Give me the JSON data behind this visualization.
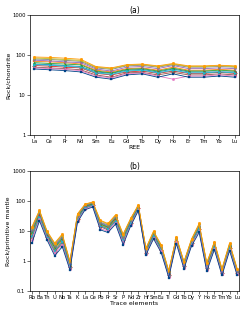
{
  "ree_elements": [
    "La",
    "Ce",
    "Pr",
    "Nd",
    "Sm",
    "Eu",
    "Gd",
    "Tb",
    "Dy",
    "Ho",
    "Er",
    "Tm",
    "Yb",
    "Lu"
  ],
  "trace_elements": [
    "Rb",
    "Ba",
    "Th",
    "U",
    "Nb",
    "Ta",
    "K",
    "La",
    "Ce",
    "Pb",
    "Pr",
    "Sr",
    "P",
    "Nd",
    "Zr",
    "Hf",
    "Sm",
    "Eu",
    "Ti",
    "Gd",
    "Tb",
    "Dy",
    "Y",
    "Ho",
    "Er",
    "Tm",
    "Yb",
    "Lu"
  ],
  "title_a": "(a)",
  "title_b": "(b)",
  "ylabel_a": "Rock/chondrite",
  "ylabel_b": "Rock/primitive mantle",
  "xlabel_a": "REE",
  "xlabel_b": "Trace elements",
  "colors": [
    "#1f77b4",
    "#ff7f0e",
    "#2ca02c",
    "#d62728",
    "#9467bd",
    "#8c564b",
    "#17becf",
    "#7f7f7f",
    "#bcbd22",
    "#e377c2",
    "#ff9900",
    "#004488"
  ],
  "ree_data": [
    [
      60,
      58,
      55,
      52,
      38,
      35,
      42,
      44,
      38,
      45,
      38,
      38,
      38,
      38
    ],
    [
      70,
      68,
      65,
      60,
      42,
      38,
      46,
      48,
      42,
      50,
      42,
      42,
      44,
      42
    ],
    [
      65,
      62,
      60,
      57,
      40,
      36,
      44,
      46,
      40,
      47,
      40,
      40,
      42,
      40
    ],
    [
      55,
      53,
      50,
      48,
      35,
      32,
      38,
      40,
      35,
      40,
      35,
      35,
      37,
      35
    ],
    [
      75,
      72,
      68,
      65,
      45,
      40,
      50,
      52,
      46,
      55,
      46,
      46,
      48,
      46
    ],
    [
      50,
      48,
      46,
      43,
      32,
      28,
      36,
      37,
      32,
      37,
      32,
      32,
      34,
      32
    ],
    [
      58,
      56,
      53,
      50,
      36,
      33,
      40,
      42,
      36,
      42,
      36,
      36,
      38,
      36
    ],
    [
      80,
      78,
      74,
      70,
      48,
      44,
      54,
      56,
      50,
      58,
      50,
      50,
      52,
      50
    ],
    [
      85,
      82,
      78,
      74,
      50,
      46,
      56,
      58,
      52,
      60,
      52,
      52,
      54,
      52
    ],
    [
      48,
      46,
      44,
      41,
      30,
      27,
      34,
      36,
      30,
      25,
      30,
      30,
      32,
      30
    ],
    [
      90,
      88,
      84,
      79,
      52,
      48,
      58,
      60,
      54,
      62,
      54,
      54,
      56,
      54
    ],
    [
      45,
      43,
      41,
      38,
      28,
      25,
      32,
      34,
      28,
      34,
      28,
      28,
      30,
      28
    ]
  ],
  "trace_data": [
    [
      10,
      40,
      8,
      3,
      6,
      0.8,
      30,
      65,
      80,
      18,
      14,
      28,
      6,
      22,
      60,
      2.2,
      8,
      3.5,
      10,
      5.5,
      0.8,
      4.5,
      14,
      0.7,
      3.5,
      0.45,
      3.2,
      0.45
    ],
    [
      8,
      35,
      7,
      2.5,
      5,
      0.7,
      28,
      70,
      85,
      16,
      13,
      25,
      5.5,
      20,
      65,
      2.0,
      7.5,
      3.2,
      9,
      5.0,
      0.75,
      4.2,
      13,
      0.65,
      3.2,
      0.42,
      3.0,
      0.42
    ],
    [
      9,
      38,
      7.5,
      2.8,
      5.5,
      0.75,
      29,
      68,
      82,
      17,
      13.5,
      27,
      5.8,
      21,
      62,
      2.1,
      7.8,
      3.3,
      9.5,
      5.2,
      0.77,
      4.3,
      13.5,
      0.68,
      3.3,
      0.43,
      3.1,
      0.43
    ],
    [
      7,
      32,
      6.5,
      2.2,
      4.5,
      0.65,
      26,
      62,
      76,
      15,
      12,
      23,
      5.0,
      19,
      58,
      1.9,
      7.0,
      3.0,
      8.5,
      4.8,
      0.7,
      4.0,
      12,
      0.6,
      3.0,
      0.4,
      2.8,
      0.4
    ],
    [
      12,
      45,
      9,
      3.5,
      7,
      0.9,
      35,
      75,
      90,
      20,
      16,
      32,
      7,
      25,
      70,
      2.5,
      9,
      4.0,
      11,
      6.0,
      0.9,
      5.0,
      16,
      0.8,
      4.0,
      0.5,
      3.6,
      0.5
    ],
    [
      6,
      28,
      6,
      2.0,
      4,
      0.6,
      24,
      58,
      72,
      14,
      11,
      21,
      4.5,
      18,
      55,
      1.8,
      6.5,
      2.8,
      8,
      4.5,
      0.65,
      3.8,
      11,
      0.55,
      2.8,
      0.38,
      2.6,
      0.38
    ],
    [
      7,
      30,
      6.5,
      2.2,
      4.5,
      0.65,
      26,
      60,
      74,
      15,
      12,
      22,
      5.0,
      19,
      57,
      1.9,
      7.0,
      3.0,
      8.5,
      4.8,
      0.68,
      4.0,
      12,
      0.58,
      2.9,
      0.39,
      2.7,
      0.39
    ],
    [
      11,
      42,
      8.5,
      3.2,
      6.5,
      0.85,
      33,
      72,
      88,
      19,
      15,
      30,
      6.5,
      24,
      68,
      2.4,
      8.5,
      3.8,
      10.5,
      5.8,
      0.87,
      4.8,
      15,
      0.76,
      3.8,
      0.48,
      3.4,
      0.48
    ],
    [
      13,
      48,
      9.5,
      3.8,
      7.5,
      0.95,
      37,
      78,
      93,
      22,
      17,
      34,
      7.5,
      26,
      73,
      2.6,
      9.5,
      4.2,
      11.5,
      6.2,
      0.93,
      5.2,
      17,
      0.84,
      4.2,
      0.53,
      3.8,
      0.53
    ],
    [
      5,
      25,
      5.5,
      1.8,
      3.5,
      0.55,
      22,
      55,
      68,
      12,
      10,
      19,
      4.0,
      16,
      52,
      1.7,
      6.0,
      2.6,
      7.5,
      4.2,
      0.6,
      3.5,
      10,
      0.5,
      2.6,
      0.36,
      2.4,
      0.36
    ],
    [
      14,
      50,
      10,
      4.0,
      8,
      1.0,
      38,
      80,
      95,
      23,
      18,
      35,
      8,
      27,
      75,
      2.7,
      10,
      4.4,
      12,
      6.5,
      0.96,
      5.5,
      18,
      0.88,
      4.4,
      0.56,
      4.0,
      0.56
    ],
    [
      4,
      22,
      5,
      1.5,
      3,
      0.5,
      20,
      52,
      64,
      11,
      9,
      17,
      3.5,
      15,
      48,
      1.6,
      5.5,
      2.4,
      7,
      3.8,
      0.55,
      3.2,
      9,
      0.45,
      2.4,
      0.33,
      2.2,
      0.33
    ]
  ]
}
